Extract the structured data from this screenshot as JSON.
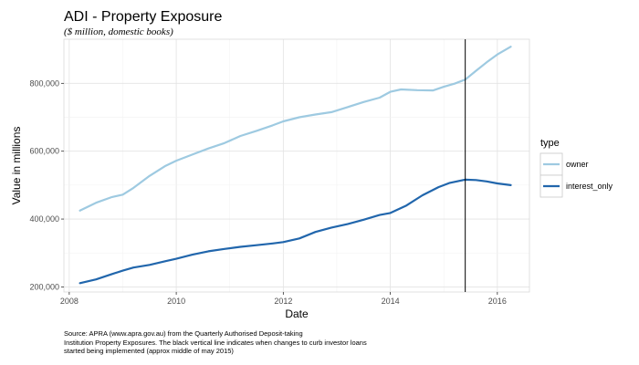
{
  "chart_data": {
    "type": "line",
    "title": "ADI - Property Exposure",
    "subtitle": "($ million, domestic books)",
    "xlabel": "Date",
    "ylabel": "Value in millions",
    "xlim": [
      2007.9,
      2016.6
    ],
    "ylim": [
      185000,
      930000
    ],
    "x_ticks": [
      2008,
      2010,
      2012,
      2014,
      2016
    ],
    "y_ticks": [
      200000,
      400000,
      600000,
      800000
    ],
    "y_tick_labels": [
      "200,000",
      "400,000",
      "600,000",
      "800,000"
    ],
    "grid": true,
    "legend": {
      "title": "type",
      "placement": "right"
    },
    "vline": {
      "x": 2015.4,
      "color": "#000000"
    },
    "series": [
      {
        "name": "owner",
        "color": "#9ecae1",
        "x": [
          2008.2,
          2008.5,
          2008.8,
          2009.0,
          2009.2,
          2009.5,
          2009.8,
          2010.0,
          2010.3,
          2010.6,
          2010.9,
          2011.2,
          2011.5,
          2011.8,
          2012.0,
          2012.3,
          2012.6,
          2012.9,
          2013.2,
          2013.5,
          2013.8,
          2014.0,
          2014.2,
          2014.5,
          2014.8,
          2015.0,
          2015.2,
          2015.4,
          2015.6,
          2015.8,
          2016.0,
          2016.25
        ],
        "y": [
          425000,
          448000,
          465000,
          472000,
          492000,
          527000,
          557000,
          572000,
          590000,
          608000,
          624000,
          645000,
          660000,
          676000,
          688000,
          700000,
          708000,
          715000,
          730000,
          745000,
          758000,
          775000,
          782000,
          780000,
          779000,
          790000,
          799000,
          811000,
          837000,
          862000,
          885000,
          908000
        ]
      },
      {
        "name": "interest_only",
        "color": "#2166ac",
        "x": [
          2008.2,
          2008.5,
          2008.8,
          2009.0,
          2009.2,
          2009.5,
          2009.8,
          2010.0,
          2010.3,
          2010.6,
          2010.9,
          2011.2,
          2011.5,
          2011.8,
          2012.0,
          2012.3,
          2012.6,
          2012.9,
          2013.2,
          2013.5,
          2013.8,
          2014.0,
          2014.3,
          2014.6,
          2014.9,
          2015.1,
          2015.4,
          2015.6,
          2015.8,
          2016.0,
          2016.25
        ],
        "y": [
          211000,
          222000,
          238000,
          248000,
          257000,
          265000,
          276000,
          283000,
          295000,
          305000,
          312000,
          318000,
          323000,
          328000,
          332000,
          343000,
          362000,
          375000,
          385000,
          398000,
          412000,
          418000,
          440000,
          470000,
          494000,
          506000,
          516000,
          515000,
          511000,
          505000,
          500000
        ]
      }
    ]
  },
  "caption_lines": [
    "Source: APRA (www.apra.gov.au) from the Quarterly Authorised Deposit-taking",
    "Institution Property Exposures. The black vertical line indicates when changes to curb investor loans",
    "started being implemented (approx middle of may 2015)"
  ]
}
